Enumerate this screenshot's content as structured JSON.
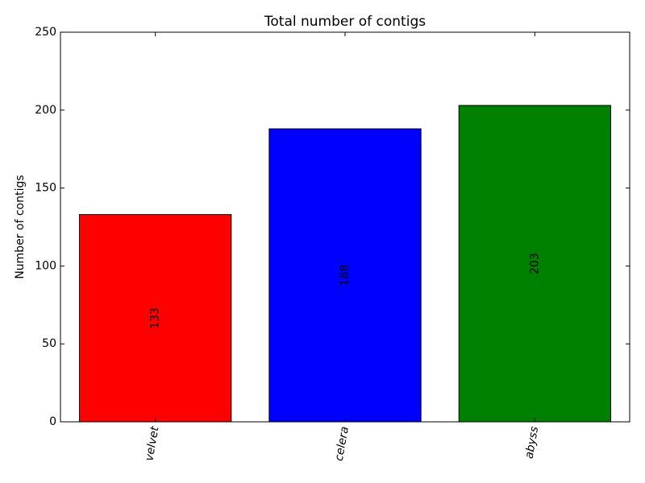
{
  "chart_data": {
    "type": "bar",
    "title": "Total number of contigs",
    "xlabel": "",
    "ylabel": "Number of contigs",
    "categories": [
      "velvet",
      "celera",
      "abyss"
    ],
    "values": [
      133,
      188,
      203
    ],
    "value_labels": [
      "133",
      "188",
      "203"
    ],
    "colors": [
      "#ff0000",
      "#0000ff",
      "#008000"
    ],
    "ylim": [
      0,
      250
    ],
    "yticks": [
      0,
      50,
      100,
      150,
      200,
      250
    ],
    "ytick_labels": [
      "0",
      "50",
      "100",
      "150",
      "200",
      "250"
    ],
    "grid": false,
    "legend": "none"
  }
}
